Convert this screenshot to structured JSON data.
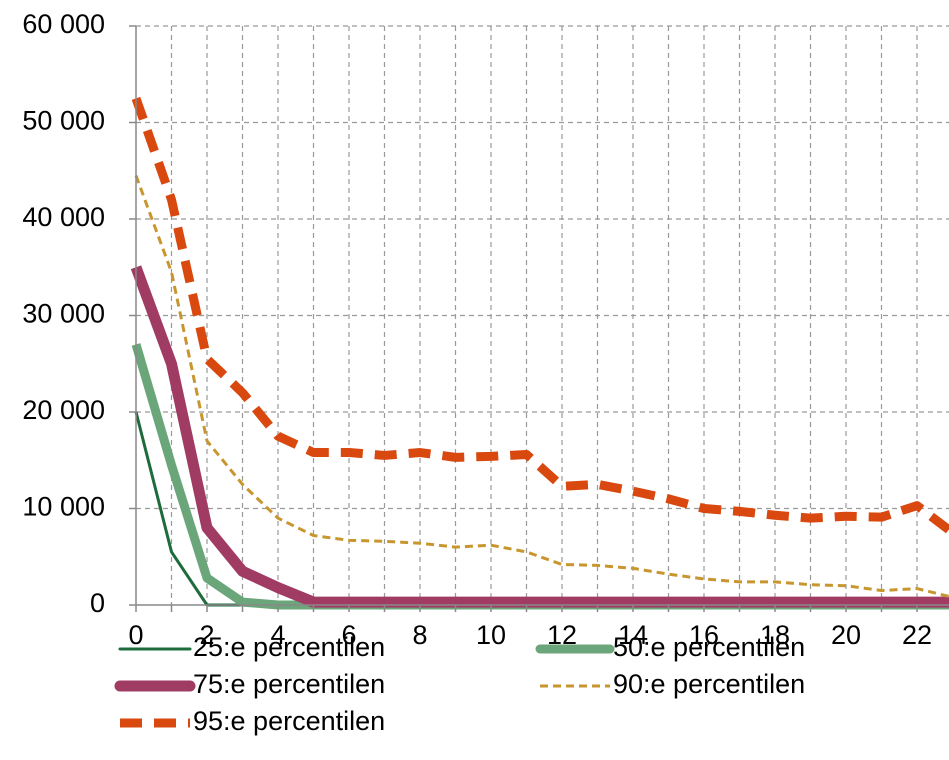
{
  "chart_data": {
    "type": "line",
    "x": [
      0,
      1,
      2,
      3,
      4,
      5,
      6,
      7,
      8,
      9,
      10,
      11,
      12,
      13,
      14,
      15,
      16,
      17,
      18,
      19,
      20,
      21,
      22,
      23
    ],
    "series": [
      {
        "name": "25:e percentilen",
        "color": "#1e6b3c",
        "width": 3,
        "dash": "none",
        "values": [
          20000,
          5500,
          0,
          0,
          0,
          0,
          0,
          0,
          0,
          0,
          0,
          0,
          0,
          0,
          0,
          0,
          0,
          0,
          0,
          0,
          0,
          0,
          0,
          0
        ]
      },
      {
        "name": "50:e percentilen",
        "color": "#6aa67a",
        "width": 9,
        "dash": "none",
        "values": [
          27000,
          14500,
          2800,
          300,
          0,
          0,
          0,
          0,
          0,
          0,
          0,
          0,
          0,
          0,
          0,
          0,
          0,
          0,
          0,
          0,
          0,
          0,
          0,
          0
        ]
      },
      {
        "name": "75:e percentilen",
        "color": "#a03c64",
        "width": 11,
        "dash": "none",
        "values": [
          35000,
          25000,
          8000,
          3500,
          1800,
          300,
          300,
          300,
          300,
          300,
          300,
          300,
          300,
          300,
          300,
          300,
          300,
          300,
          300,
          300,
          300,
          300,
          300,
          300
        ]
      },
      {
        "name": "90:e percentilen",
        "color": "#c8962e",
        "width": 3,
        "dash": "8 5",
        "values": [
          44500,
          34500,
          17000,
          12500,
          9000,
          7200,
          6700,
          6600,
          6400,
          6000,
          6200,
          5500,
          4200,
          4100,
          3800,
          3200,
          2700,
          2400,
          2400,
          2100,
          2000,
          1500,
          1700,
          800
        ]
      },
      {
        "name": "95:e percentilen",
        "color": "#d9480f",
        "width": 9,
        "dash": "22 12",
        "values": [
          52500,
          42000,
          25500,
          22000,
          17500,
          15800,
          15800,
          15500,
          15800,
          15300,
          15400,
          15600,
          12300,
          12500,
          11800,
          11000,
          10000,
          9700,
          9300,
          9000,
          9200,
          9100,
          10300,
          7500
        ]
      }
    ],
    "xlim": [
      0,
      23
    ],
    "ylim": [
      0,
      60000
    ],
    "xticks": [
      0,
      2,
      4,
      6,
      8,
      10,
      12,
      14,
      16,
      18,
      20,
      22
    ],
    "xminor": [
      1,
      3,
      5,
      7,
      9,
      11,
      13,
      15,
      17,
      19,
      21,
      23
    ],
    "yticks": [
      0,
      {
        "value": 10000,
        "label": "10 000"
      },
      {
        "value": 20000,
        "label": "20 000"
      },
      {
        "value": 30000,
        "label": "30 000"
      },
      {
        "value": 40000,
        "label": "40 000"
      },
      {
        "value": 50000,
        "label": "50 000"
      },
      {
        "value": 60000,
        "label": "60 000"
      }
    ],
    "grid": true
  }
}
